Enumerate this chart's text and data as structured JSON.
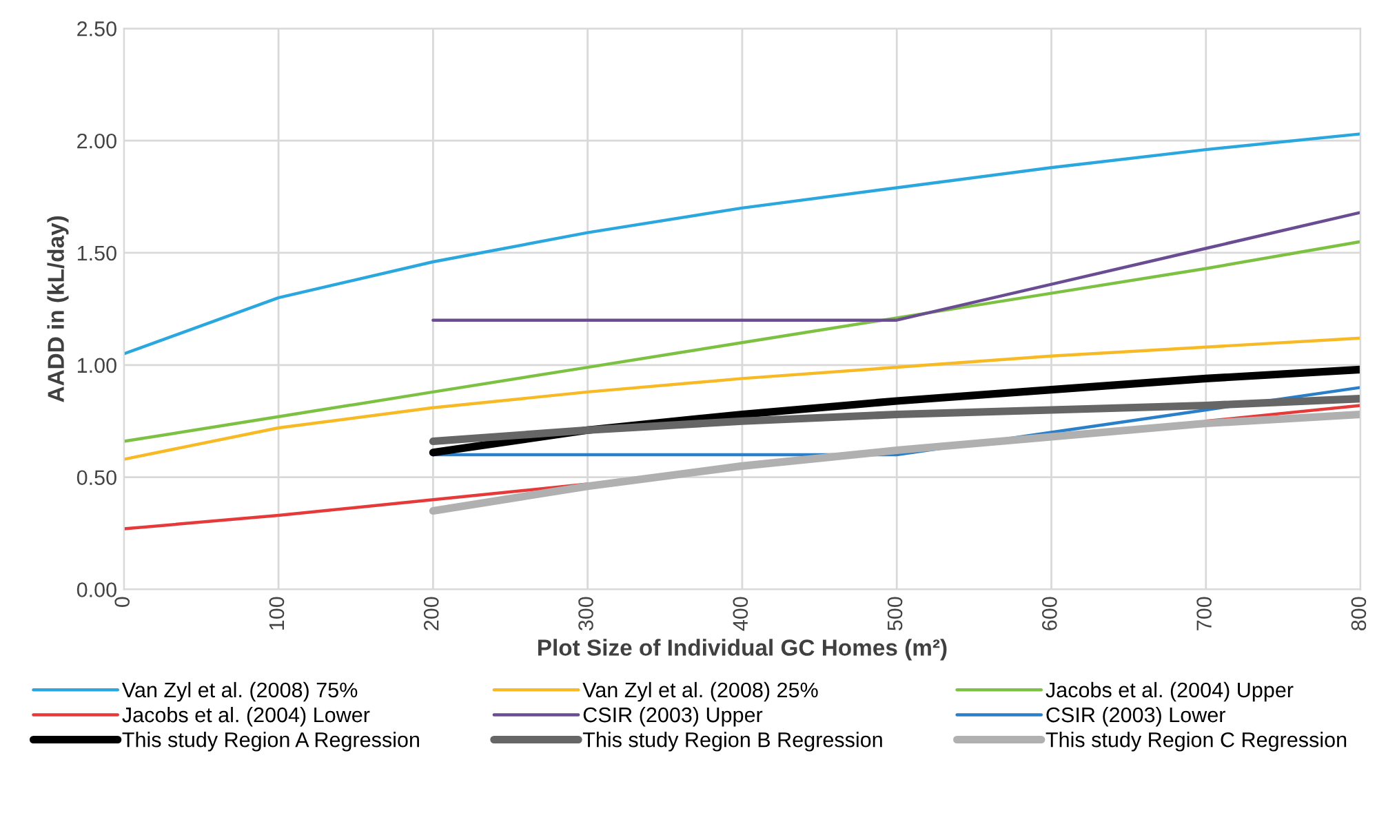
{
  "chart_data": {
    "type": "line",
    "xlabel": "Plot Size of Individual GC Homes (m²)",
    "ylabel": "AADD in (kL/day)",
    "x": [
      0,
      100,
      200,
      300,
      400,
      500,
      600,
      700,
      800
    ],
    "xlim": [
      0,
      800
    ],
    "xticks": [
      0,
      100,
      200,
      300,
      400,
      500,
      600,
      700,
      800
    ],
    "ylim": [
      0,
      2.5
    ],
    "yticks": [
      {
        "value": 0,
        "label": "0.00"
      },
      {
        "value": 0.5,
        "label": "0.50"
      },
      {
        "value": 1,
        "label": "1.00"
      },
      {
        "value": 1.5,
        "label": "1.50"
      },
      {
        "value": 2,
        "label": "2.00"
      },
      {
        "value": 2.5,
        "label": "2.50"
      }
    ],
    "grid": true,
    "legend": "bottom",
    "marker": "none",
    "line_style": "solid",
    "series": [
      {
        "name": "Van Zyl et al. (2008) 75%",
        "color": "#2aa7de",
        "values": [
          1.05,
          1.3,
          1.46,
          1.59,
          1.7,
          1.79,
          1.88,
          1.96,
          2.03
        ]
      },
      {
        "name": "Van Zyl et al. (2008) 25%",
        "color": "#f7b924",
        "values": [
          0.58,
          0.72,
          0.81,
          0.88,
          0.94,
          0.99,
          1.04,
          1.08,
          1.12
        ]
      },
      {
        "name": "Jacobs et al. (2004) Upper",
        "color": "#7dc142",
        "values": [
          0.66,
          0.77,
          0.88,
          0.99,
          1.1,
          1.21,
          1.32,
          1.43,
          1.55
        ]
      },
      {
        "name": "Jacobs et al. (2004) Lower",
        "color": "#e63a3a",
        "values": [
          0.27,
          0.33,
          0.4,
          0.47,
          null,
          null,
          null,
          0.75,
          0.82
        ]
      },
      {
        "name": "CSIR (2003) Upper",
        "color": "#6a4c93",
        "values": [
          null,
          null,
          1.2,
          1.2,
          1.2,
          1.2,
          1.36,
          1.52,
          1.68
        ]
      },
      {
        "name": "CSIR (2003) Lower",
        "color": "#2a7fc9",
        "values": [
          null,
          null,
          0.6,
          0.6,
          0.6,
          0.6,
          0.7,
          0.8,
          0.9
        ]
      },
      {
        "name": "This study Region A Regression",
        "color": "#000000",
        "values": [
          null,
          null,
          0.61,
          0.71,
          0.78,
          0.84,
          0.89,
          0.94,
          0.98
        ]
      },
      {
        "name": "This study Region B Regression",
        "color": "#666666",
        "values": [
          null,
          null,
          0.66,
          0.71,
          0.75,
          0.78,
          0.8,
          0.82,
          0.85
        ]
      },
      {
        "name": "This study Region C Regression",
        "color": "#b0b0b0",
        "values": [
          null,
          null,
          0.35,
          0.46,
          0.55,
          0.62,
          0.68,
          0.74,
          0.78
        ]
      }
    ]
  }
}
